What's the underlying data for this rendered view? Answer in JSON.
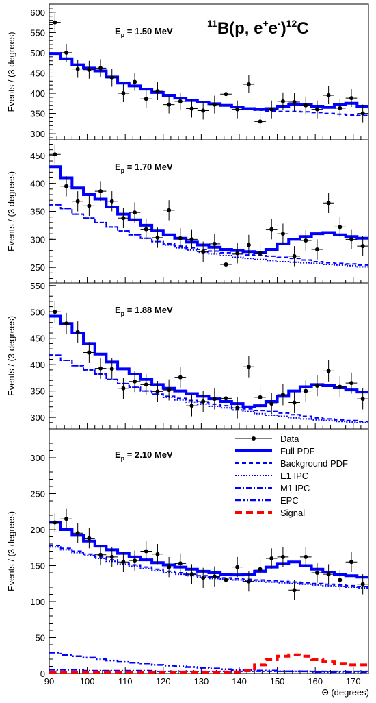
{
  "figure": {
    "title_main": "B(p, e",
    "title_sup1": "11",
    "title_sup2": "+",
    "title_sup3": "-",
    "title_mid": "e",
    "title_end": ")",
    "title_sup4": "12",
    "title_c": "C",
    "ylabel": "Events / (3 degrees)",
    "xlabel": "Θ (degrees)",
    "x_ticks": [
      "90",
      "100",
      "110",
      "120",
      "130",
      "140",
      "150",
      "160",
      "170"
    ]
  },
  "legend": {
    "placement": "top-right of bottom panel",
    "entries": [
      {
        "label": "Data",
        "style": "data",
        "color": "#000000"
      },
      {
        "label": "Full PDF",
        "style": "solid",
        "color": "#0000ff"
      },
      {
        "label": "Background PDF",
        "style": "dashed",
        "color": "#0000ff"
      },
      {
        "label": "E1 IPC",
        "style": "dotted",
        "color": "#0000ff"
      },
      {
        "label": "M1 IPC",
        "style": "dashdot",
        "color": "#0000ff"
      },
      {
        "label": "EPC",
        "style": "dashdotdot",
        "color": "#0000ff"
      },
      {
        "label": "Signal",
        "style": "dashed-thick",
        "color": "#ff0000"
      }
    ]
  },
  "chart_data": [
    {
      "type": "line",
      "energy_label": "E",
      "energy_sub": "p",
      "energy_value": " = 1.50 MeV",
      "xlim": [
        90,
        174
      ],
      "ylim": [
        285,
        620
      ],
      "yticks": [
        300,
        350,
        400,
        450,
        500,
        550,
        600
      ],
      "bin_edges": [
        90,
        93,
        96,
        99,
        102,
        105,
        108,
        111,
        114,
        117,
        120,
        123,
        126,
        129,
        132,
        135,
        138,
        141,
        144,
        147,
        150,
        153,
        156,
        159,
        162,
        165,
        168,
        171,
        174
      ],
      "data": {
        "x": [
          91.5,
          94.5,
          97.5,
          100.5,
          103.5,
          106.5,
          109.5,
          112.5,
          115.5,
          118.5,
          121.5,
          124.5,
          127.5,
          130.5,
          133.5,
          136.5,
          139.5,
          142.5,
          145.5,
          148.5,
          151.5,
          154.5,
          157.5,
          160.5,
          163.5,
          166.5,
          169.5,
          172.5
        ],
        "y": [
          575,
          500,
          460,
          458,
          462,
          438,
          400,
          428,
          386,
          405,
          372,
          380,
          362,
          357,
          372,
          398,
          360,
          422,
          330,
          360,
          380,
          378,
          370,
          360,
          395,
          363,
          388,
          350
        ],
        "yerr": 22
      },
      "series": [
        {
          "name": "Full PDF",
          "style": "solid",
          "values": [
            498,
            485,
            470,
            462,
            455,
            440,
            425,
            418,
            410,
            402,
            395,
            388,
            382,
            378,
            374,
            370,
            366,
            362,
            360,
            362,
            368,
            372,
            372,
            368,
            365,
            372,
            375,
            368
          ]
        },
        {
          "name": "Background PDF",
          "style": "dashed",
          "values": [
            498,
            485,
            470,
            462,
            455,
            440,
            425,
            418,
            410,
            402,
            395,
            388,
            382,
            378,
            374,
            370,
            366,
            362,
            358,
            356,
            355,
            355,
            354,
            352,
            350,
            348,
            346,
            345
          ]
        }
      ]
    },
    {
      "type": "line",
      "energy_label": "E",
      "energy_sub": "p",
      "energy_value": " = 1.70 MeV",
      "xlim": [
        90,
        174
      ],
      "ylim": [
        222,
        478
      ],
      "yticks": [
        250,
        300,
        350,
        400,
        450
      ],
      "bin_edges": [
        90,
        93,
        96,
        99,
        102,
        105,
        108,
        111,
        114,
        117,
        120,
        123,
        126,
        129,
        132,
        135,
        138,
        141,
        144,
        147,
        150,
        153,
        156,
        159,
        162,
        165,
        168,
        171,
        174
      ],
      "data": {
        "x": [
          91.5,
          94.5,
          97.5,
          100.5,
          103.5,
          106.5,
          109.5,
          112.5,
          115.5,
          118.5,
          121.5,
          124.5,
          127.5,
          130.5,
          133.5,
          136.5,
          139.5,
          142.5,
          145.5,
          148.5,
          151.5,
          154.5,
          157.5,
          160.5,
          163.5,
          166.5,
          169.5,
          172.5
        ],
        "y": [
          452,
          395,
          368,
          360,
          386,
          368,
          338,
          348,
          318,
          303,
          352,
          302,
          300,
          278,
          292,
          255,
          275,
          290,
          275,
          318,
          310,
          270,
          298,
          282,
          365,
          322,
          300,
          288
        ],
        "yerr": 18
      },
      "series": [
        {
          "name": "Full PDF",
          "style": "solid",
          "values": [
            430,
            410,
            392,
            380,
            372,
            358,
            345,
            335,
            325,
            316,
            308,
            302,
            295,
            290,
            286,
            282,
            280,
            278,
            276,
            282,
            292,
            300,
            305,
            310,
            312,
            308,
            305,
            302
          ]
        },
        {
          "name": "E1 IPC",
          "style": "dotted",
          "values": [
            362,
            355,
            345,
            338,
            330,
            322,
            315,
            308,
            302,
            296,
            290,
            285,
            281,
            277,
            274,
            271,
            268,
            266,
            264,
            262,
            260,
            259,
            258,
            257,
            255,
            254,
            253,
            251
          ]
        },
        {
          "name": "Background PDF",
          "style": "dashed",
          "values": [
            362,
            355,
            345,
            338,
            330,
            322,
            315,
            308,
            302,
            296,
            292,
            288,
            285,
            282,
            279,
            276,
            274,
            272,
            271,
            270,
            268,
            266,
            263,
            260,
            258,
            257,
            256,
            254
          ]
        }
      ]
    },
    {
      "type": "line",
      "energy_label": "E",
      "energy_sub": "p",
      "energy_value": " = 1.88 MeV",
      "xlim": [
        90,
        174
      ],
      "ylim": [
        278,
        555
      ],
      "yticks": [
        300,
        350,
        400,
        450,
        500,
        550
      ],
      "bin_edges": [
        90,
        93,
        96,
        99,
        102,
        105,
        108,
        111,
        114,
        117,
        120,
        123,
        126,
        129,
        132,
        135,
        138,
        141,
        144,
        147,
        150,
        153,
        156,
        159,
        162,
        165,
        168,
        171,
        174
      ],
      "data": {
        "x": [
          91.5,
          94.5,
          97.5,
          100.5,
          103.5,
          106.5,
          109.5,
          112.5,
          115.5,
          118.5,
          121.5,
          124.5,
          127.5,
          130.5,
          133.5,
          136.5,
          139.5,
          142.5,
          145.5,
          148.5,
          151.5,
          154.5,
          157.5,
          160.5,
          163.5,
          166.5,
          169.5,
          172.5
        ],
        "y": [
          500,
          478,
          462,
          423,
          393,
          392,
          355,
          368,
          362,
          349,
          352,
          376,
          322,
          330,
          335,
          336,
          318,
          396,
          338,
          326,
          343,
          328,
          350,
          360,
          388,
          358,
          365,
          335
        ],
        "yerr": 20
      },
      "series": [
        {
          "name": "Full PDF",
          "style": "solid",
          "values": [
            492,
            478,
            460,
            440,
            420,
            405,
            392,
            382,
            372,
            362,
            355,
            350,
            345,
            340,
            335,
            330,
            326,
            320,
            322,
            330,
            340,
            350,
            358,
            362,
            360,
            356,
            352,
            348
          ]
        },
        {
          "name": "E1 IPC",
          "style": "dotted",
          "values": [
            418,
            408,
            398,
            390,
            382,
            372,
            364,
            357,
            350,
            344,
            338,
            333,
            329,
            325,
            321,
            318,
            314,
            311,
            307,
            304,
            302,
            299,
            297,
            295,
            294,
            292,
            291,
            290
          ]
        },
        {
          "name": "Background PDF",
          "style": "dashed",
          "values": [
            418,
            408,
            398,
            390,
            382,
            372,
            364,
            357,
            350,
            344,
            340,
            336,
            332,
            328,
            325,
            322,
            318,
            316,
            313,
            311,
            308,
            305,
            302,
            299,
            297,
            295,
            294,
            292
          ]
        }
      ]
    },
    {
      "type": "line",
      "energy_label": "E",
      "energy_sub": "p",
      "energy_value": " = 2.10 MeV",
      "xlim": [
        90,
        174
      ],
      "ylim": [
        0,
        340
      ],
      "yticks": [
        0,
        50,
        100,
        150,
        200,
        250,
        300
      ],
      "bin_edges": [
        90,
        93,
        96,
        99,
        102,
        105,
        108,
        111,
        114,
        117,
        120,
        123,
        126,
        129,
        132,
        135,
        138,
        141,
        144,
        147,
        150,
        153,
        156,
        159,
        162,
        165,
        168,
        171,
        174
      ],
      "data": {
        "x": [
          91.5,
          94.5,
          97.5,
          100.5,
          103.5,
          106.5,
          109.5,
          112.5,
          115.5,
          118.5,
          121.5,
          124.5,
          127.5,
          130.5,
          133.5,
          136.5,
          139.5,
          142.5,
          145.5,
          148.5,
          151.5,
          154.5,
          157.5,
          160.5,
          163.5,
          166.5,
          169.5,
          172.5
        ],
        "y": [
          210,
          215,
          195,
          188,
          165,
          162,
          155,
          157,
          170,
          166,
          148,
          153,
          138,
          133,
          135,
          130,
          148,
          128,
          145,
          160,
          162,
          116,
          162,
          140,
          138,
          130,
          155,
          124
        ],
        "yerr": 14
      },
      "series": [
        {
          "name": "Full PDF",
          "style": "solid",
          "values": [
            210,
            200,
            192,
            184,
            177,
            172,
            167,
            162,
            158,
            154,
            151,
            148,
            145,
            142,
            140,
            138,
            137,
            138,
            142,
            148,
            153,
            155,
            150,
            145,
            141,
            138,
            136,
            134
          ]
        },
        {
          "name": "E1 IPC",
          "style": "dotted",
          "values": [
            176,
            172,
            168,
            164,
            160,
            156,
            152,
            149,
            146,
            143,
            140,
            138,
            136,
            134,
            132,
            131,
            130,
            129,
            128,
            127,
            126,
            125,
            124,
            123,
            122,
            121,
            120,
            119
          ]
        },
        {
          "name": "Background PDF",
          "style": "dashed",
          "values": [
            178,
            174,
            170,
            166,
            162,
            158,
            154,
            151,
            148,
            145,
            142,
            140,
            138,
            136,
            134,
            133,
            132,
            131,
            130,
            129,
            128,
            127,
            126,
            125,
            124,
            123,
            122,
            121
          ]
        },
        {
          "name": "EPC",
          "style": "dashdotdot",
          "values": [
            29,
            26,
            24,
            22,
            20,
            18,
            17,
            15,
            14,
            12,
            11,
            10,
            9,
            8,
            7,
            6,
            5,
            5,
            4,
            4,
            3,
            3,
            3,
            2,
            2,
            2,
            2,
            2
          ]
        },
        {
          "name": "M1 IPC",
          "style": "dashdot",
          "values": [
            5,
            5,
            5,
            4,
            4,
            4,
            4,
            4,
            4,
            3,
            3,
            3,
            3,
            3,
            3,
            3,
            3,
            3,
            3,
            3,
            3,
            3,
            3,
            3,
            3,
            3,
            3,
            3
          ]
        },
        {
          "name": "Signal",
          "style": "dashed-thick",
          "values": [
            1,
            1,
            1,
            1,
            1,
            1,
            1,
            1,
            1,
            1,
            1,
            1,
            1,
            1,
            1,
            1,
            2,
            4,
            12,
            20,
            24,
            26,
            24,
            20,
            17,
            14,
            12,
            12
          ]
        }
      ]
    }
  ]
}
